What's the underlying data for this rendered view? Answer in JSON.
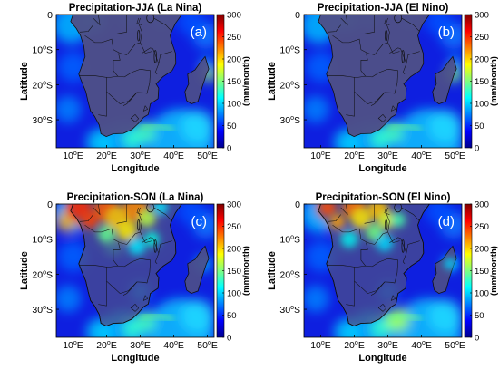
{
  "panels": [
    {
      "id": "a",
      "title": "Precipitation-JJA (La Nina)",
      "tag": "(a)",
      "season": "JJA",
      "phase": "La Nina"
    },
    {
      "id": "b",
      "title": "Precipitation-JJA (El Nino)",
      "tag": "(b)",
      "season": "JJA",
      "phase": "El Nino"
    },
    {
      "id": "c",
      "title": "Precipitation-SON (La Nina)",
      "tag": "(c)",
      "season": "SON",
      "phase": "La Nina"
    },
    {
      "id": "d",
      "title": "Precipitation-SON (El Nino)",
      "tag": "(d)",
      "season": "SON",
      "phase": "El Nino"
    }
  ],
  "axes": {
    "xlabel": "Longitude",
    "ylabel": "Latitude",
    "xticks": [
      {
        "deg": "10",
        "suffix": "E"
      },
      {
        "deg": "20",
        "suffix": "E"
      },
      {
        "deg": "30",
        "suffix": "E"
      },
      {
        "deg": "40",
        "suffix": "E"
      },
      {
        "deg": "50",
        "suffix": "E"
      }
    ],
    "yticks": [
      {
        "label": "0",
        "deg": "",
        "suffix": ""
      },
      {
        "label": "",
        "deg": "10",
        "suffix": "S"
      },
      {
        "label": "",
        "deg": "20",
        "suffix": "S"
      },
      {
        "label": "",
        "deg": "30",
        "suffix": "S"
      }
    ],
    "xlim": [
      5,
      52
    ],
    "ylim": [
      -38,
      0
    ]
  },
  "colorbar": {
    "label": "(mm/month)",
    "ticks": [
      "0",
      "50",
      "100",
      "150",
      "200",
      "250",
      "300"
    ],
    "range": [
      0,
      300
    ],
    "colormap": "jet"
  },
  "colors": {
    "background": "#ffffff",
    "land": "#4e4f87",
    "ocean": "#0e1fe0",
    "border": "#111111"
  }
}
